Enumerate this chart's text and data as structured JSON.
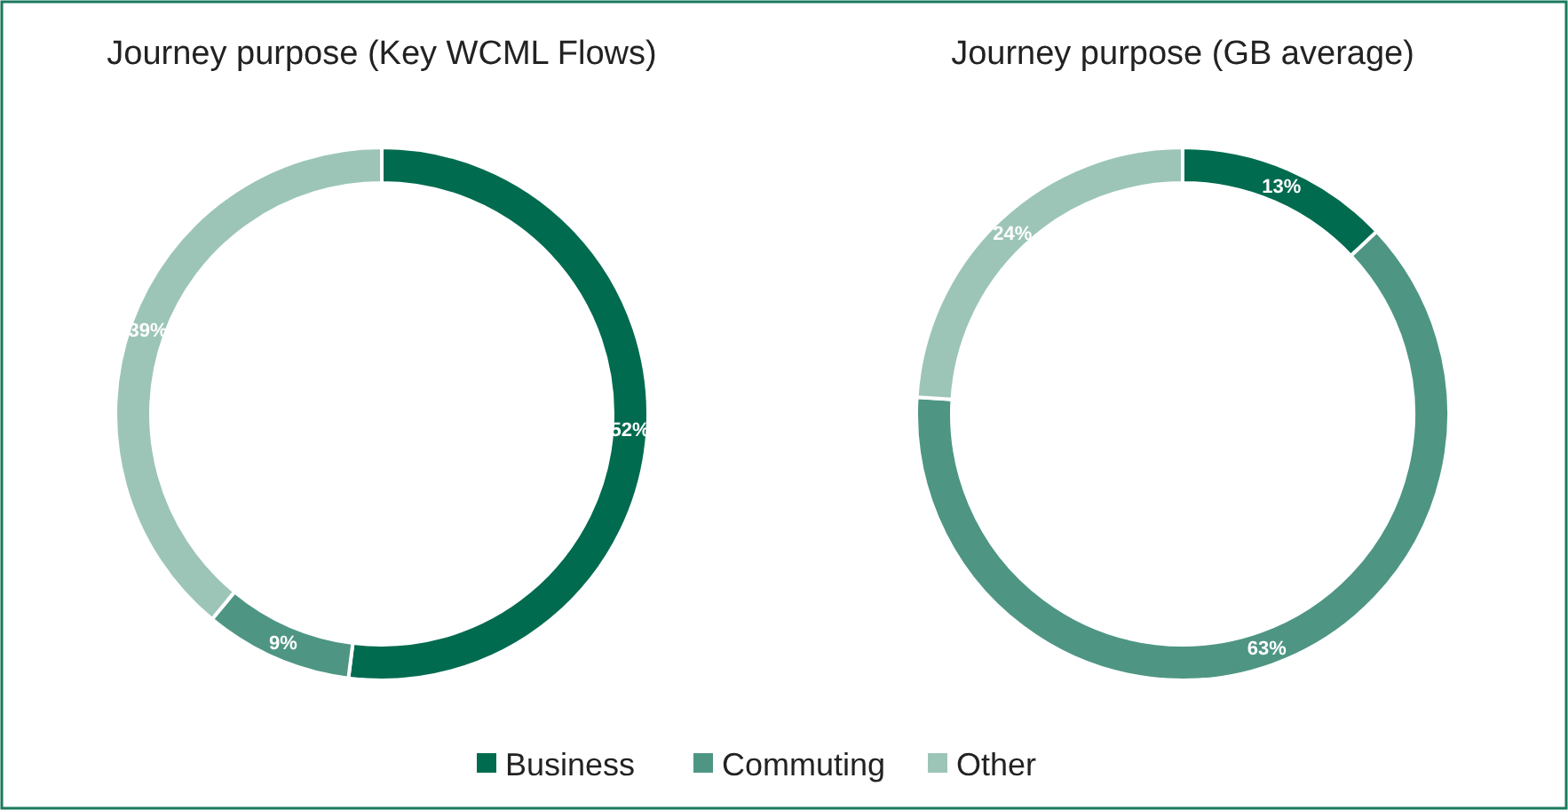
{
  "chart_data": [
    {
      "type": "donut",
      "title": "Journey purpose (Key WCML Flows)",
      "categories": [
        "Business",
        "Commuting",
        "Other"
      ],
      "values": [
        52,
        9,
        39
      ],
      "value_labels": [
        "52%",
        "9%",
        "39%"
      ],
      "colors": [
        "#006b4f",
        "#4e9683",
        "#9cc5b8"
      ],
      "legend": "bottom"
    },
    {
      "type": "donut",
      "title": "Journey purpose (GB average)",
      "categories": [
        null,
        null,
        null
      ],
      "values": [
        13,
        63,
        24
      ],
      "value_labels": [
        "13%",
        "63%",
        "24%"
      ],
      "colors": [
        "#006b4f",
        "#4e9683",
        "#9cc5b8"
      ]
    }
  ]
}
